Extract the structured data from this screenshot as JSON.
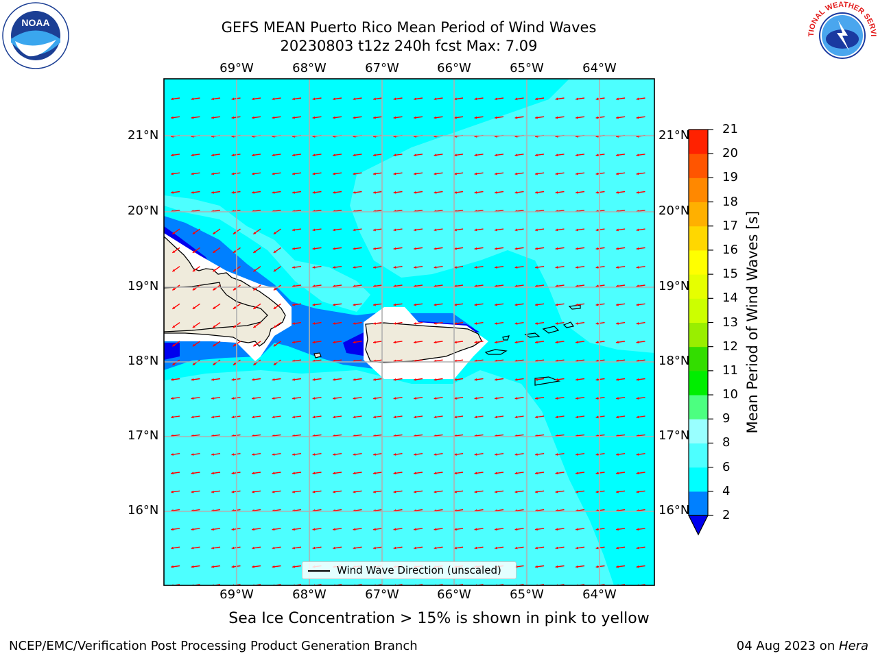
{
  "header": {
    "title_line1": "GEFS MEAN Puerto Rico Mean Period of Wind Waves",
    "title_line2": "20230803 t12z 240h fcst   Max: 7.09"
  },
  "logos": {
    "left": "noaa-logo",
    "right": "nws-logo",
    "left_text": "NOAA",
    "right_text": "NATIONAL WEATHER SERVICE"
  },
  "map": {
    "lon_labels": [
      "69°W",
      "68°W",
      "67°W",
      "66°W",
      "65°W",
      "64°W"
    ],
    "lat_labels": [
      "21°N",
      "20°N",
      "19°N",
      "18°N",
      "17°N",
      "16°N"
    ],
    "legend": "Wind Wave Direction (unscaled)",
    "colors": {
      "ocean_4_6": "#00ffff",
      "ocean_6_8": "#4dffff",
      "ocean_2_4": "#0080ff",
      "ocean_under_2": "#0000ee",
      "land": "#efebdc",
      "arrows": "#ff0000"
    }
  },
  "colorbar": {
    "label": "Mean Period of Wind Waves [s]",
    "ticks": [
      "2",
      "4",
      "6",
      "8",
      "9",
      "10",
      "11",
      "12",
      "13",
      "14",
      "15",
      "16",
      "17",
      "18",
      "19",
      "20",
      "21"
    ],
    "colors": [
      "#0080ff",
      "#00ffff",
      "#4dffff",
      "#99ffff",
      "#4cff80",
      "#00ee00",
      "#33dd00",
      "#99ee00",
      "#ccff00",
      "#e6ff00",
      "#ffff00",
      "#ffd700",
      "#ffb000",
      "#ff8800",
      "#ff5500",
      "#ff2200"
    ],
    "under_color": "#0000ee"
  },
  "footer": {
    "subtitle": "Sea Ice Concentration > 15% is shown in pink to yellow",
    "left": "NCEP/EMC/Verification Post Processing Product Generation Branch",
    "right_date": "04 Aug 2023 on ",
    "right_host": "Hera"
  }
}
